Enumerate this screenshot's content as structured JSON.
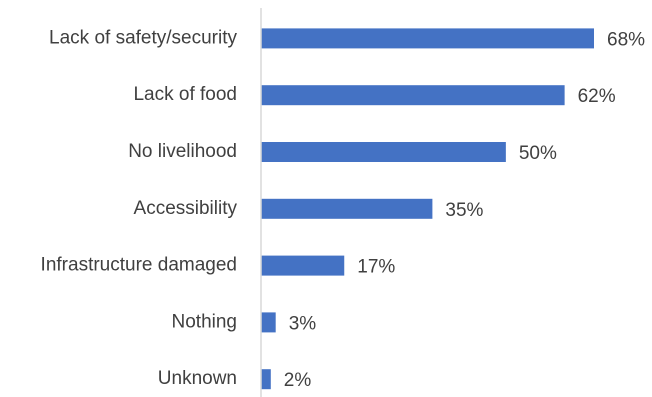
{
  "chart_data": {
    "type": "bar",
    "orientation": "horizontal",
    "categories": [
      "Lack of safety/security",
      "Lack of food",
      "No livelihood",
      "Accessibility",
      "Infrastructure damaged",
      "Nothing",
      "Unknown"
    ],
    "values": [
      68,
      62,
      50,
      35,
      17,
      3,
      2
    ],
    "value_labels": [
      "68%",
      "62%",
      "50%",
      "35%",
      "17%",
      "3%",
      "2%"
    ],
    "title": "",
    "xlabel": "",
    "ylabel": "",
    "xlim": [
      0,
      68
    ],
    "grid": false,
    "legend": "none",
    "bar_color": "#4472C4",
    "axis_color": "#D9D9D9",
    "text_color": "#404040"
  }
}
